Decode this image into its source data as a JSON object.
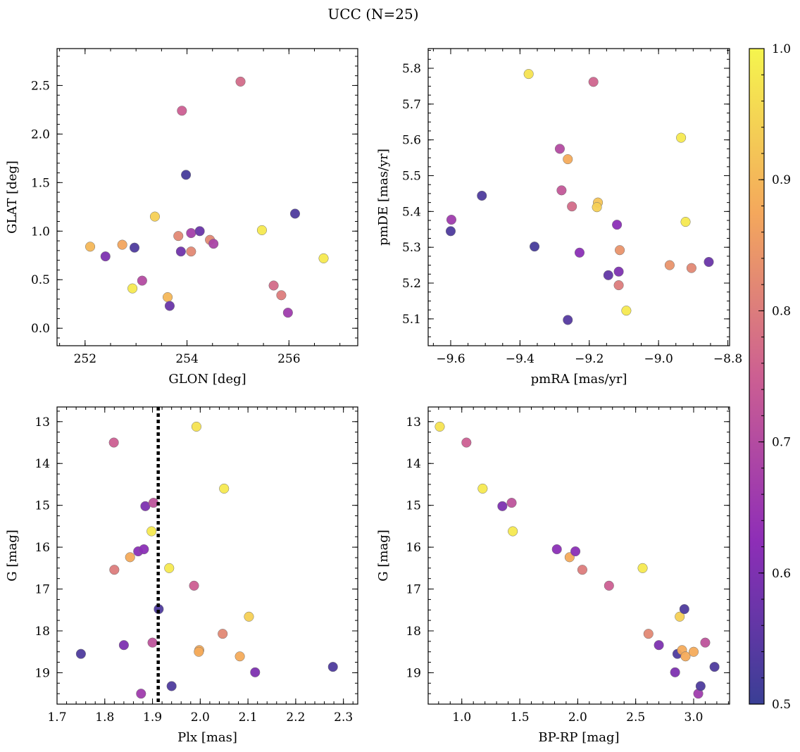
{
  "title": "UCC (N=25)",
  "colorbar": {
    "min": 0.5,
    "max": 1.0,
    "ticks": [
      {
        "value": 0.5,
        "label": "0.5"
      },
      {
        "value": 0.6,
        "label": "0.6"
      },
      {
        "value": 0.7,
        "label": "0.7"
      },
      {
        "value": 0.8,
        "label": "0.8"
      },
      {
        "value": 0.9,
        "label": "0.9"
      },
      {
        "value": 1.0,
        "label": "1.0"
      }
    ],
    "colormap": "plasma"
  },
  "chart_data": [
    {
      "type": "scatter",
      "id": "glon-glat",
      "xlabel": "GLON [deg]",
      "ylabel": "GLAT [deg]",
      "xlim": [
        251.45,
        257.35
      ],
      "ylim": [
        -0.18,
        2.88
      ],
      "y_inverted": false,
      "xticks": [
        {
          "value": 252,
          "label": "252"
        },
        {
          "value": 254,
          "label": "254"
        },
        {
          "value": 256,
          "label": "256"
        }
      ],
      "yticks": [
        {
          "value": 0.0,
          "label": "0.0"
        },
        {
          "value": 0.5,
          "label": "0.5"
        },
        {
          "value": 1.0,
          "label": "1.0"
        },
        {
          "value": 1.5,
          "label": "1.5"
        },
        {
          "value": 2.0,
          "label": "2.0"
        },
        {
          "value": 2.5,
          "label": "2.5"
        }
      ],
      "xminor": 0.5,
      "yminor": 0.1,
      "points": [
        {
          "x": 252.1,
          "y": 0.84,
          "c": 0.9
        },
        {
          "x": 252.4,
          "y": 0.74,
          "c": 0.6
        },
        {
          "x": 252.73,
          "y": 0.86,
          "c": 0.87
        },
        {
          "x": 252.93,
          "y": 0.41,
          "c": 0.98
        },
        {
          "x": 252.97,
          "y": 0.83,
          "c": 0.53
        },
        {
          "x": 253.12,
          "y": 0.49,
          "c": 0.7
        },
        {
          "x": 253.37,
          "y": 1.15,
          "c": 0.94
        },
        {
          "x": 253.62,
          "y": 0.32,
          "c": 0.9
        },
        {
          "x": 253.66,
          "y": 0.23,
          "c": 0.57
        },
        {
          "x": 253.83,
          "y": 0.95,
          "c": 0.82
        },
        {
          "x": 253.9,
          "y": 2.24,
          "c": 0.75
        },
        {
          "x": 253.88,
          "y": 0.79,
          "c": 0.58
        },
        {
          "x": 253.98,
          "y": 1.58,
          "c": 0.52
        },
        {
          "x": 254.08,
          "y": 0.98,
          "c": 0.67
        },
        {
          "x": 254.08,
          "y": 0.79,
          "c": 0.82
        },
        {
          "x": 254.25,
          "y": 1.0,
          "c": 0.57
        },
        {
          "x": 254.45,
          "y": 0.91,
          "c": 0.82
        },
        {
          "x": 254.52,
          "y": 0.87,
          "c": 0.68
        },
        {
          "x": 255.05,
          "y": 2.54,
          "c": 0.77
        },
        {
          "x": 255.47,
          "y": 1.01,
          "c": 0.98
        },
        {
          "x": 255.7,
          "y": 0.44,
          "c": 0.77
        },
        {
          "x": 255.85,
          "y": 0.34,
          "c": 0.8
        },
        {
          "x": 255.98,
          "y": 0.16,
          "c": 0.66
        },
        {
          "x": 256.12,
          "y": 1.18,
          "c": 0.53
        },
        {
          "x": 256.68,
          "y": 0.72,
          "c": 0.98
        }
      ]
    },
    {
      "type": "scatter",
      "id": "pmra-pmde",
      "xlabel": "pmRA [mas/yr]",
      "ylabel": "pmDE [mas/yr]",
      "xlim": [
        -9.665,
        -8.795
      ],
      "ylim": [
        5.025,
        5.855
      ],
      "y_inverted": false,
      "xticks": [
        {
          "value": -9.6,
          "label": "−9.6"
        },
        {
          "value": -9.4,
          "label": "−9.4"
        },
        {
          "value": -9.2,
          "label": "−9.2"
        },
        {
          "value": -9.0,
          "label": "−9.0"
        },
        {
          "value": -8.8,
          "label": "−8.8"
        }
      ],
      "yticks": [
        {
          "value": 5.1,
          "label": "5.1"
        },
        {
          "value": 5.2,
          "label": "5.2"
        },
        {
          "value": 5.3,
          "label": "5.3"
        },
        {
          "value": 5.4,
          "label": "5.4"
        },
        {
          "value": 5.5,
          "label": "5.5"
        },
        {
          "value": 5.6,
          "label": "5.6"
        },
        {
          "value": 5.7,
          "label": "5.7"
        },
        {
          "value": 5.8,
          "label": "5.8"
        }
      ],
      "xminor": 0.05,
      "yminor": 0.025,
      "points": [
        {
          "x": -9.598,
          "y": 5.377,
          "c": 0.66
        },
        {
          "x": -9.6,
          "y": 5.345,
          "c": 0.53
        },
        {
          "x": -9.51,
          "y": 5.444,
          "c": 0.53
        },
        {
          "x": -9.375,
          "y": 5.784,
          "c": 0.97
        },
        {
          "x": -9.358,
          "y": 5.302,
          "c": 0.52
        },
        {
          "x": -9.285,
          "y": 5.575,
          "c": 0.7
        },
        {
          "x": -9.28,
          "y": 5.459,
          "c": 0.73
        },
        {
          "x": -9.262,
          "y": 5.546,
          "c": 0.88
        },
        {
          "x": -9.262,
          "y": 5.097,
          "c": 0.54
        },
        {
          "x": -9.25,
          "y": 5.414,
          "c": 0.77
        },
        {
          "x": -9.228,
          "y": 5.285,
          "c": 0.62
        },
        {
          "x": -9.188,
          "y": 5.762,
          "c": 0.76
        },
        {
          "x": -9.175,
          "y": 5.425,
          "c": 0.92
        },
        {
          "x": -9.178,
          "y": 5.412,
          "c": 0.94
        },
        {
          "x": -9.145,
          "y": 5.222,
          "c": 0.56
        },
        {
          "x": -9.12,
          "y": 5.363,
          "c": 0.62
        },
        {
          "x": -9.115,
          "y": 5.232,
          "c": 0.6
        },
        {
          "x": -9.112,
          "y": 5.292,
          "c": 0.84
        },
        {
          "x": -9.115,
          "y": 5.194,
          "c": 0.8
        },
        {
          "x": -9.093,
          "y": 5.123,
          "c": 0.98
        },
        {
          "x": -8.935,
          "y": 5.606,
          "c": 0.98
        },
        {
          "x": -8.922,
          "y": 5.371,
          "c": 0.98
        },
        {
          "x": -8.968,
          "y": 5.25,
          "c": 0.84
        },
        {
          "x": -8.905,
          "y": 5.242,
          "c": 0.82
        },
        {
          "x": -8.855,
          "y": 5.259,
          "c": 0.57
        }
      ]
    },
    {
      "type": "scatter",
      "id": "plx-g",
      "xlabel": "Plx [mas]",
      "ylabel": "G [mag]",
      "xlim": [
        1.7,
        2.33
      ],
      "ylim": [
        19.75,
        12.65
      ],
      "y_inverted": true,
      "vline": {
        "x": 1.912,
        "style": "dotted"
      },
      "xticks": [
        {
          "value": 1.7,
          "label": "1.7"
        },
        {
          "value": 1.8,
          "label": "1.8"
        },
        {
          "value": 1.9,
          "label": "1.9"
        },
        {
          "value": 2.0,
          "label": "2.0"
        },
        {
          "value": 2.1,
          "label": "2.1"
        },
        {
          "value": 2.2,
          "label": "2.2"
        },
        {
          "value": 2.3,
          "label": "2.3"
        }
      ],
      "yticks": [
        {
          "value": 13,
          "label": "13"
        },
        {
          "value": 14,
          "label": "14"
        },
        {
          "value": 15,
          "label": "15"
        },
        {
          "value": 16,
          "label": "16"
        },
        {
          "value": 17,
          "label": "17"
        },
        {
          "value": 18,
          "label": "18"
        },
        {
          "value": 19,
          "label": "19"
        }
      ],
      "xminor": 0.02,
      "yminor": 0.25,
      "points": [
        {
          "x": 1.819,
          "y": 13.5,
          "c": 0.75
        },
        {
          "x": 1.82,
          "y": 16.54,
          "c": 0.8
        },
        {
          "x": 1.75,
          "y": 18.55,
          "c": 0.53
        },
        {
          "x": 1.84,
          "y": 18.34,
          "c": 0.6
        },
        {
          "x": 1.853,
          "y": 16.24,
          "c": 0.88
        },
        {
          "x": 1.87,
          "y": 16.1,
          "c": 0.62
        },
        {
          "x": 1.876,
          "y": 19.5,
          "c": 0.66
        },
        {
          "x": 1.882,
          "y": 16.05,
          "c": 0.62
        },
        {
          "x": 1.885,
          "y": 15.02,
          "c": 0.6
        },
        {
          "x": 1.898,
          "y": 15.62,
          "c": 0.98
        },
        {
          "x": 1.902,
          "y": 14.94,
          "c": 0.72
        },
        {
          "x": 1.9,
          "y": 18.28,
          "c": 0.72
        },
        {
          "x": 1.913,
          "y": 17.48,
          "c": 0.53
        },
        {
          "x": 1.935,
          "y": 16.5,
          "c": 0.98
        },
        {
          "x": 1.94,
          "y": 19.32,
          "c": 0.53
        },
        {
          "x": 1.987,
          "y": 16.92,
          "c": 0.75
        },
        {
          "x": 1.992,
          "y": 13.12,
          "c": 0.97
        },
        {
          "x": 1.998,
          "y": 18.46,
          "c": 0.88
        },
        {
          "x": 1.997,
          "y": 18.5,
          "c": 0.88
        },
        {
          "x": 2.047,
          "y": 18.07,
          "c": 0.82
        },
        {
          "x": 2.05,
          "y": 14.6,
          "c": 0.98
        },
        {
          "x": 2.083,
          "y": 18.61,
          "c": 0.88
        },
        {
          "x": 2.102,
          "y": 17.66,
          "c": 0.94
        },
        {
          "x": 2.115,
          "y": 18.99,
          "c": 0.6
        },
        {
          "x": 2.278,
          "y": 18.86,
          "c": 0.53
        }
      ]
    },
    {
      "type": "scatter",
      "id": "bprp-g",
      "xlabel": "BP-RP [mag]",
      "ylabel": "G [mag]",
      "xlim": [
        0.71,
        3.31
      ],
      "ylim": [
        19.75,
        12.65
      ],
      "y_inverted": true,
      "xticks": [
        {
          "value": 1.0,
          "label": "1.0"
        },
        {
          "value": 1.5,
          "label": "1.5"
        },
        {
          "value": 2.0,
          "label": "2.0"
        },
        {
          "value": 2.5,
          "label": "2.5"
        },
        {
          "value": 3.0,
          "label": "3.0"
        }
      ],
      "yticks": [
        {
          "value": 13,
          "label": "13"
        },
        {
          "value": 14,
          "label": "14"
        },
        {
          "value": 15,
          "label": "15"
        },
        {
          "value": 16,
          "label": "16"
        },
        {
          "value": 17,
          "label": "17"
        },
        {
          "value": 18,
          "label": "18"
        },
        {
          "value": 19,
          "label": "19"
        }
      ],
      "xminor": 0.1,
      "yminor": 0.25,
      "points": [
        {
          "x": 0.81,
          "y": 13.12,
          "c": 0.97
        },
        {
          "x": 1.04,
          "y": 13.5,
          "c": 0.75
        },
        {
          "x": 1.18,
          "y": 14.6,
          "c": 0.98
        },
        {
          "x": 1.35,
          "y": 15.02,
          "c": 0.6
        },
        {
          "x": 1.43,
          "y": 14.94,
          "c": 0.72
        },
        {
          "x": 1.44,
          "y": 15.62,
          "c": 0.98
        },
        {
          "x": 1.82,
          "y": 16.05,
          "c": 0.62
        },
        {
          "x": 1.93,
          "y": 16.24,
          "c": 0.88
        },
        {
          "x": 1.98,
          "y": 16.1,
          "c": 0.62
        },
        {
          "x": 2.04,
          "y": 16.54,
          "c": 0.8
        },
        {
          "x": 2.27,
          "y": 16.92,
          "c": 0.75
        },
        {
          "x": 2.56,
          "y": 16.5,
          "c": 0.98
        },
        {
          "x": 2.61,
          "y": 18.07,
          "c": 0.82
        },
        {
          "x": 2.7,
          "y": 18.34,
          "c": 0.6
        },
        {
          "x": 2.84,
          "y": 18.99,
          "c": 0.6
        },
        {
          "x": 2.86,
          "y": 18.55,
          "c": 0.53
        },
        {
          "x": 2.88,
          "y": 17.66,
          "c": 0.94
        },
        {
          "x": 2.9,
          "y": 18.46,
          "c": 0.88
        },
        {
          "x": 2.92,
          "y": 17.48,
          "c": 0.53
        },
        {
          "x": 2.93,
          "y": 18.61,
          "c": 0.88
        },
        {
          "x": 3.0,
          "y": 18.5,
          "c": 0.88
        },
        {
          "x": 3.04,
          "y": 19.5,
          "c": 0.66
        },
        {
          "x": 3.06,
          "y": 19.32,
          "c": 0.53
        },
        {
          "x": 3.1,
          "y": 18.28,
          "c": 0.72
        },
        {
          "x": 3.18,
          "y": 18.86,
          "c": 0.53
        }
      ]
    }
  ]
}
